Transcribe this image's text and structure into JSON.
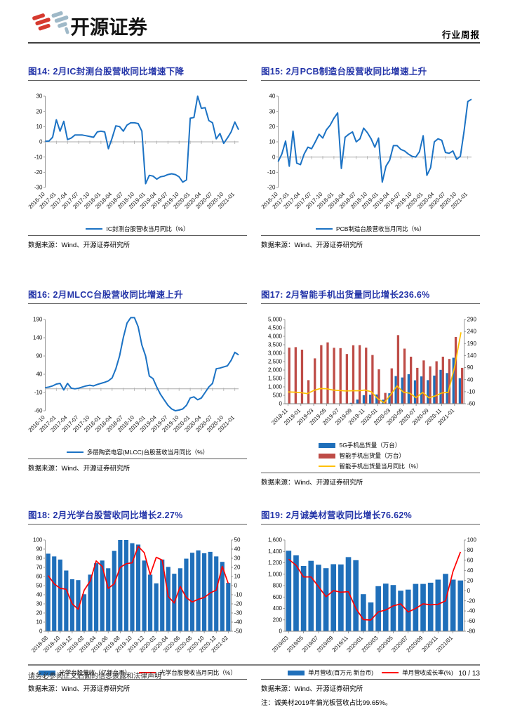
{
  "header": {
    "brand": "开源证券",
    "doc_type": "行业周报"
  },
  "footer": {
    "disclaimer": "请务必参阅正文后面的信息披露和法律声明",
    "page_number": "10 / 13"
  },
  "colors": {
    "title_blue": "#2233A8",
    "line_blue": "#1B72C4",
    "bar_blue": "#1F6FBA",
    "bar_red": "#BE4C47",
    "line_yellow": "#FFC000",
    "line_red": "#FE0000",
    "axis_gray": "#7F7F7F",
    "zero_gray": "#ABABAB",
    "logo_red": "#D63A2F",
    "logo_gray_blue": "#9FB9C8"
  },
  "chart_data": [
    {
      "id": "fig14",
      "title": "图14: 2月IC封测台股营收同比增速下降",
      "type": "line",
      "x_labels": [
        "2016-10",
        "2017-01",
        "2017-04",
        "2017-07",
        "2017-10",
        "2018-01",
        "2018-04",
        "2018-07",
        "2018-10",
        "2019-01",
        "2019-04",
        "2019-07",
        "2019-10",
        "2020-01",
        "2020-04",
        "2020-07",
        "2020-10",
        "2021-01"
      ],
      "label_step": 3,
      "axes": {
        "left": {
          "min": -30,
          "max": 30,
          "step": 10
        }
      },
      "legend_position": "bottom",
      "series": [
        {
          "name": "IC封测台股营收当月同比（%）",
          "kind": "line",
          "axis": "left",
          "color": "line_blue",
          "values": [
            0.3,
            0.5,
            3,
            14.5,
            7,
            13.5,
            1.5,
            2.5,
            4.5,
            4.5,
            4.5,
            4,
            3.5,
            3,
            6.5,
            7,
            6.5,
            -4.5,
            2.5,
            10.5,
            10,
            7,
            11,
            12.5,
            12.5,
            12,
            7,
            -27.5,
            -22,
            -22.5,
            -24.5,
            -23,
            -22.5,
            -21.5,
            -21,
            -21.5,
            -23,
            -26.5,
            -25,
            15.5,
            16,
            30,
            22,
            22.5,
            14,
            12.5,
            2,
            5.5,
            -1,
            2.5,
            6.5,
            13,
            8
          ]
        }
      ],
      "source": "数据来源：Wind、开源证券研究所"
    },
    {
      "id": "fig15",
      "title": "图15: 2月PCB制造台股营收同比增速上升",
      "type": "line",
      "x_labels": [
        "2016-10",
        "2017-01",
        "2017-04",
        "2017-07",
        "2017-10",
        "2018-01",
        "2018-04",
        "2018-07",
        "2018-10",
        "2019-01",
        "2019-04",
        "2019-07",
        "2019-10",
        "2020-01",
        "2020-04",
        "2020-07",
        "2020-10",
        "2021-01"
      ],
      "label_step": 3,
      "axes": {
        "left": {
          "min": -20,
          "max": 40,
          "step": 10
        }
      },
      "legend_position": "bottom",
      "series": [
        {
          "name": "PCB制造台股营收当月同比（%）",
          "kind": "line",
          "axis": "left",
          "color": "line_blue",
          "values": [
            -3,
            2,
            10.5,
            -6,
            17,
            -4,
            -5,
            2,
            6.5,
            5.5,
            10,
            15,
            12.5,
            18,
            21,
            25.5,
            29,
            -7.5,
            13,
            15,
            16.5,
            10,
            12,
            19,
            16,
            12,
            6.5,
            12.5,
            -16.5,
            -6,
            -2,
            7.5,
            7.5,
            5,
            4,
            2,
            0.5,
            0,
            3.5,
            14,
            -12,
            -7,
            10,
            12,
            11,
            3,
            2.5,
            4,
            -1.5,
            0.5,
            17,
            36.5,
            38
          ]
        }
      ],
      "source": "数据来源：Wind、开源证券研究所"
    },
    {
      "id": "fig16",
      "title": "图16: 2月MLCC台股营收同比增速上升",
      "type": "line",
      "x_labels": [
        "2016-10",
        "2017-01",
        "2017-04",
        "2017-07",
        "2017-10",
        "2018-01",
        "2018-04",
        "2018-07",
        "2018-10",
        "2019-01",
        "2019-04",
        "2019-07",
        "2019-10",
        "2020-01",
        "2020-04",
        "2020-07",
        "2020-10",
        "2021-01"
      ],
      "label_step": 3,
      "axes": {
        "left": {
          "min": -60,
          "max": 190,
          "step": 50
        }
      },
      "legend_position": "bottom",
      "series": [
        {
          "name": "多层陶瓷电容(MLCC)台股营收当月同比（%）",
          "kind": "line",
          "axis": "left",
          "color": "line_blue",
          "values": [
            3,
            5,
            8,
            13,
            15,
            -3,
            15,
            2,
            0,
            2,
            5,
            8,
            10,
            8,
            12,
            15,
            18,
            22,
            30,
            55,
            90,
            140,
            180,
            195,
            195,
            170,
            120,
            90,
            35,
            28,
            5,
            -15,
            -30,
            -45,
            -55,
            -60,
            -58,
            -55,
            -45,
            -25,
            -22,
            -30,
            -25,
            -10,
            5,
            15,
            55,
            57,
            60,
            63,
            78,
            100,
            93
          ]
        }
      ],
      "source": "数据来源：Wind、开源证券研究所"
    },
    {
      "id": "fig17",
      "title": "图17: 2月智能手机出货量同比增长236.6%",
      "type": "combo",
      "x_labels": [
        "2018-11",
        "2019-01",
        "2019-03",
        "2019-05",
        "2019-07",
        "2019-09",
        "2019-11",
        "2020-01",
        "2020-03",
        "2020-05",
        "2020-07",
        "2020-09",
        "2020-11",
        "2021-01"
      ],
      "label_step": 2,
      "axes": {
        "left": {
          "min": 0,
          "max": 5000,
          "step": 500,
          "comma": true
        },
        "right": {
          "min": -60,
          "max": 290,
          "step": 50
        }
      },
      "legend_position": "bottom-stacked",
      "series": [
        {
          "name": "5G手机出货量（万台）",
          "kind": "bar",
          "axis": "left",
          "color": "bar_blue",
          "values": [
            0,
            0,
            0,
            0,
            0,
            0,
            0,
            0,
            0,
            20,
            50,
            250,
            510,
            540,
            550,
            240,
            620,
            1640,
            1560,
            1750,
            1390,
            1620,
            1400,
            1670,
            2010,
            1820,
            2730,
            1520
          ]
        },
        {
          "name": "智能手机出货量（万台）",
          "kind": "bar",
          "axis": "left",
          "color": "bar_red",
          "values": [
            3330,
            3360,
            3210,
            1400,
            2690,
            3480,
            3640,
            3320,
            3300,
            2950,
            3470,
            3480,
            3330,
            2890,
            2040,
            640,
            2100,
            4070,
            3270,
            2790,
            2130,
            2570,
            2220,
            2520,
            2790,
            2660,
            3960,
            2130
          ]
        },
        {
          "name": "智能手机出货量当月同比（%）",
          "kind": "line",
          "axis": "right",
          "color": "line_yellow",
          "values": [
            -11,
            -12,
            -14,
            -18,
            -5,
            3,
            2,
            -3,
            -5,
            -7,
            -6,
            -6,
            -3,
            -10,
            -38.9,
            -56,
            -23.3,
            14.2,
            -11.8,
            -16.4,
            -34.8,
            -12.9,
            -35.6,
            -27.3,
            -15.1,
            -12.8,
            92.8,
            236.6
          ]
        }
      ],
      "source": "数据来源：Wind、开源证券研究所"
    },
    {
      "id": "fig18",
      "title": "图18: 2月光学台股营收同比增长2.27%",
      "type": "combo",
      "x_labels": [
        "2018-08",
        "2018-10",
        "2018-12",
        "2019-02",
        "2019-04",
        "2019-06",
        "2019-08",
        "2019-10",
        "2019-12",
        "2020-02",
        "2020-04",
        "2020-06",
        "2020-08",
        "2020-10",
        "2020-12",
        "2021-02"
      ],
      "label_step": 2,
      "axes": {
        "left": {
          "min": 0,
          "max": 100,
          "step": 10
        },
        "right": {
          "min": -50,
          "max": 50,
          "step": 10
        }
      },
      "legend_position": "bottom",
      "series": [
        {
          "name": "光学台股营收（亿新台币）",
          "kind": "bar",
          "axis": "left",
          "color": "bar_blue",
          "values": [
            85,
            82,
            78.5,
            66.5,
            57,
            56,
            40.5,
            62,
            74.5,
            77.5,
            69,
            88,
            100,
            100,
            96.5,
            95,
            77.5,
            62,
            52.5,
            78.5,
            70.5,
            63,
            69,
            79.5,
            86,
            88.5,
            85.5,
            87,
            82,
            76,
            53
          ]
        },
        {
          "name": "光学台股营收当月同比（%）",
          "kind": "line",
          "axis": "right",
          "color": "line_red",
          "values": [
            11,
            2,
            -3,
            -4,
            -20,
            -26,
            -5,
            5,
            27,
            21,
            -3,
            2,
            20,
            24,
            25,
            43,
            36,
            12,
            31,
            28,
            -12,
            -19,
            -1,
            -13,
            -18,
            -15,
            -13,
            -8,
            -5,
            21,
            2.27
          ]
        }
      ],
      "source": "数据来源：Wind、开源证券研究所"
    },
    {
      "id": "fig19",
      "title": "图19: 2月诚美材营收同比增长76.62%",
      "type": "combo",
      "x_labels": [
        "2019/03",
        "2019/05",
        "2019/07",
        "2019/09",
        "2019/11",
        "2020/01",
        "2020/03",
        "2020/05",
        "2020/07",
        "2020/09",
        "2020/11",
        "2021/01"
      ],
      "label_step": 2,
      "axes": {
        "left": {
          "min": 0,
          "max": 1600,
          "step": 200,
          "comma": true
        },
        "right": {
          "min": -80,
          "max": 100,
          "step": 20
        }
      },
      "legend_position": "bottom",
      "series": [
        {
          "name": "单月营收(百万元 新台币)",
          "kind": "bar",
          "axis": "left",
          "color": "bar_blue",
          "values": [
            1410,
            1330,
            1145,
            1235,
            1165,
            1105,
            1175,
            1170,
            1300,
            1245,
            650,
            505,
            790,
            835,
            810,
            710,
            730,
            830,
            830,
            850,
            905,
            1005,
            905,
            890
          ]
        },
        {
          "name": "单月营收成长率(%)",
          "kind": "line",
          "axis": "right",
          "color": "line_red",
          "values": [
            62,
            50,
            27,
            27,
            8,
            -12,
            0,
            -3,
            -2,
            -35,
            -57,
            -58,
            -42,
            -38,
            -30,
            -26,
            -42,
            -35,
            -26,
            -28,
            -27,
            -20,
            38,
            76.62
          ]
        }
      ],
      "source": "数据来源：Wind、开源证券研究所",
      "note": "注：诚美材2019年偏光板营收占比99.65%。"
    }
  ]
}
